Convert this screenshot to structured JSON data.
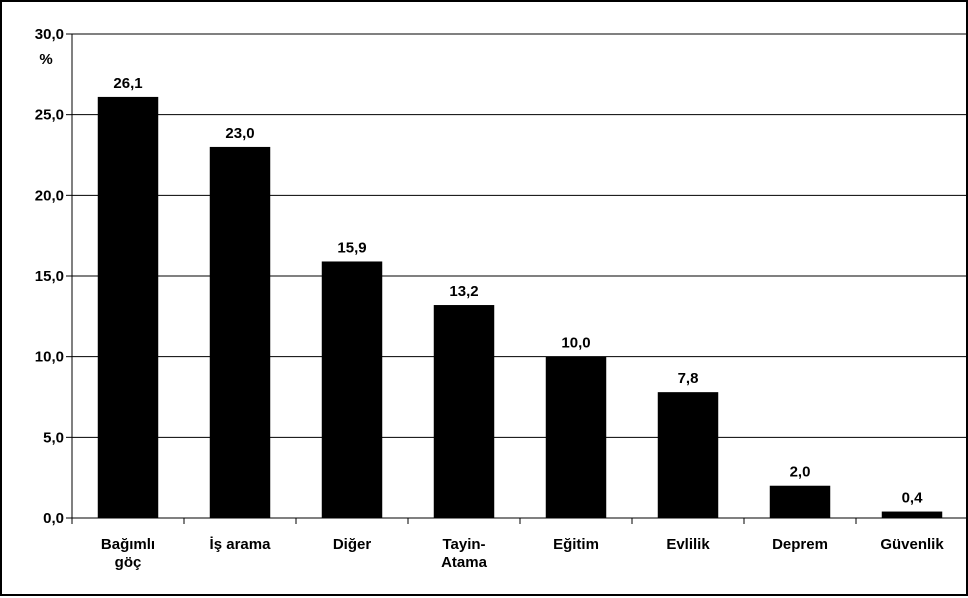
{
  "chart_data": {
    "type": "bar",
    "title": "",
    "xlabel": "",
    "ylabel": "%",
    "ylim": [
      0,
      30
    ],
    "yticks": [
      "0,0",
      "5,0",
      "10,0",
      "15,0",
      "20,0",
      "25,0",
      "30,0"
    ],
    "tick_values": [
      0,
      5,
      10,
      15,
      20,
      25,
      30
    ],
    "categories": [
      [
        "Bağımlı",
        "göç"
      ],
      [
        "İş arama"
      ],
      [
        "Diğer"
      ],
      [
        "Tayin-",
        "Atama"
      ],
      [
        "Eğitim"
      ],
      [
        "Evlilik"
      ],
      [
        "Deprem"
      ],
      [
        "Güvenlik"
      ]
    ],
    "values": [
      26.1,
      23.0,
      15.9,
      13.2,
      10.0,
      7.8,
      2.0,
      0.4
    ],
    "value_labels": [
      "26,1",
      "23,0",
      "15,9",
      "13,2",
      "10,0",
      "7,8",
      "2,0",
      "0,4"
    ],
    "grid": true,
    "legend": "none",
    "colors": {
      "bar": "#000000",
      "grid": "#000000",
      "background": "#ffffff"
    }
  }
}
